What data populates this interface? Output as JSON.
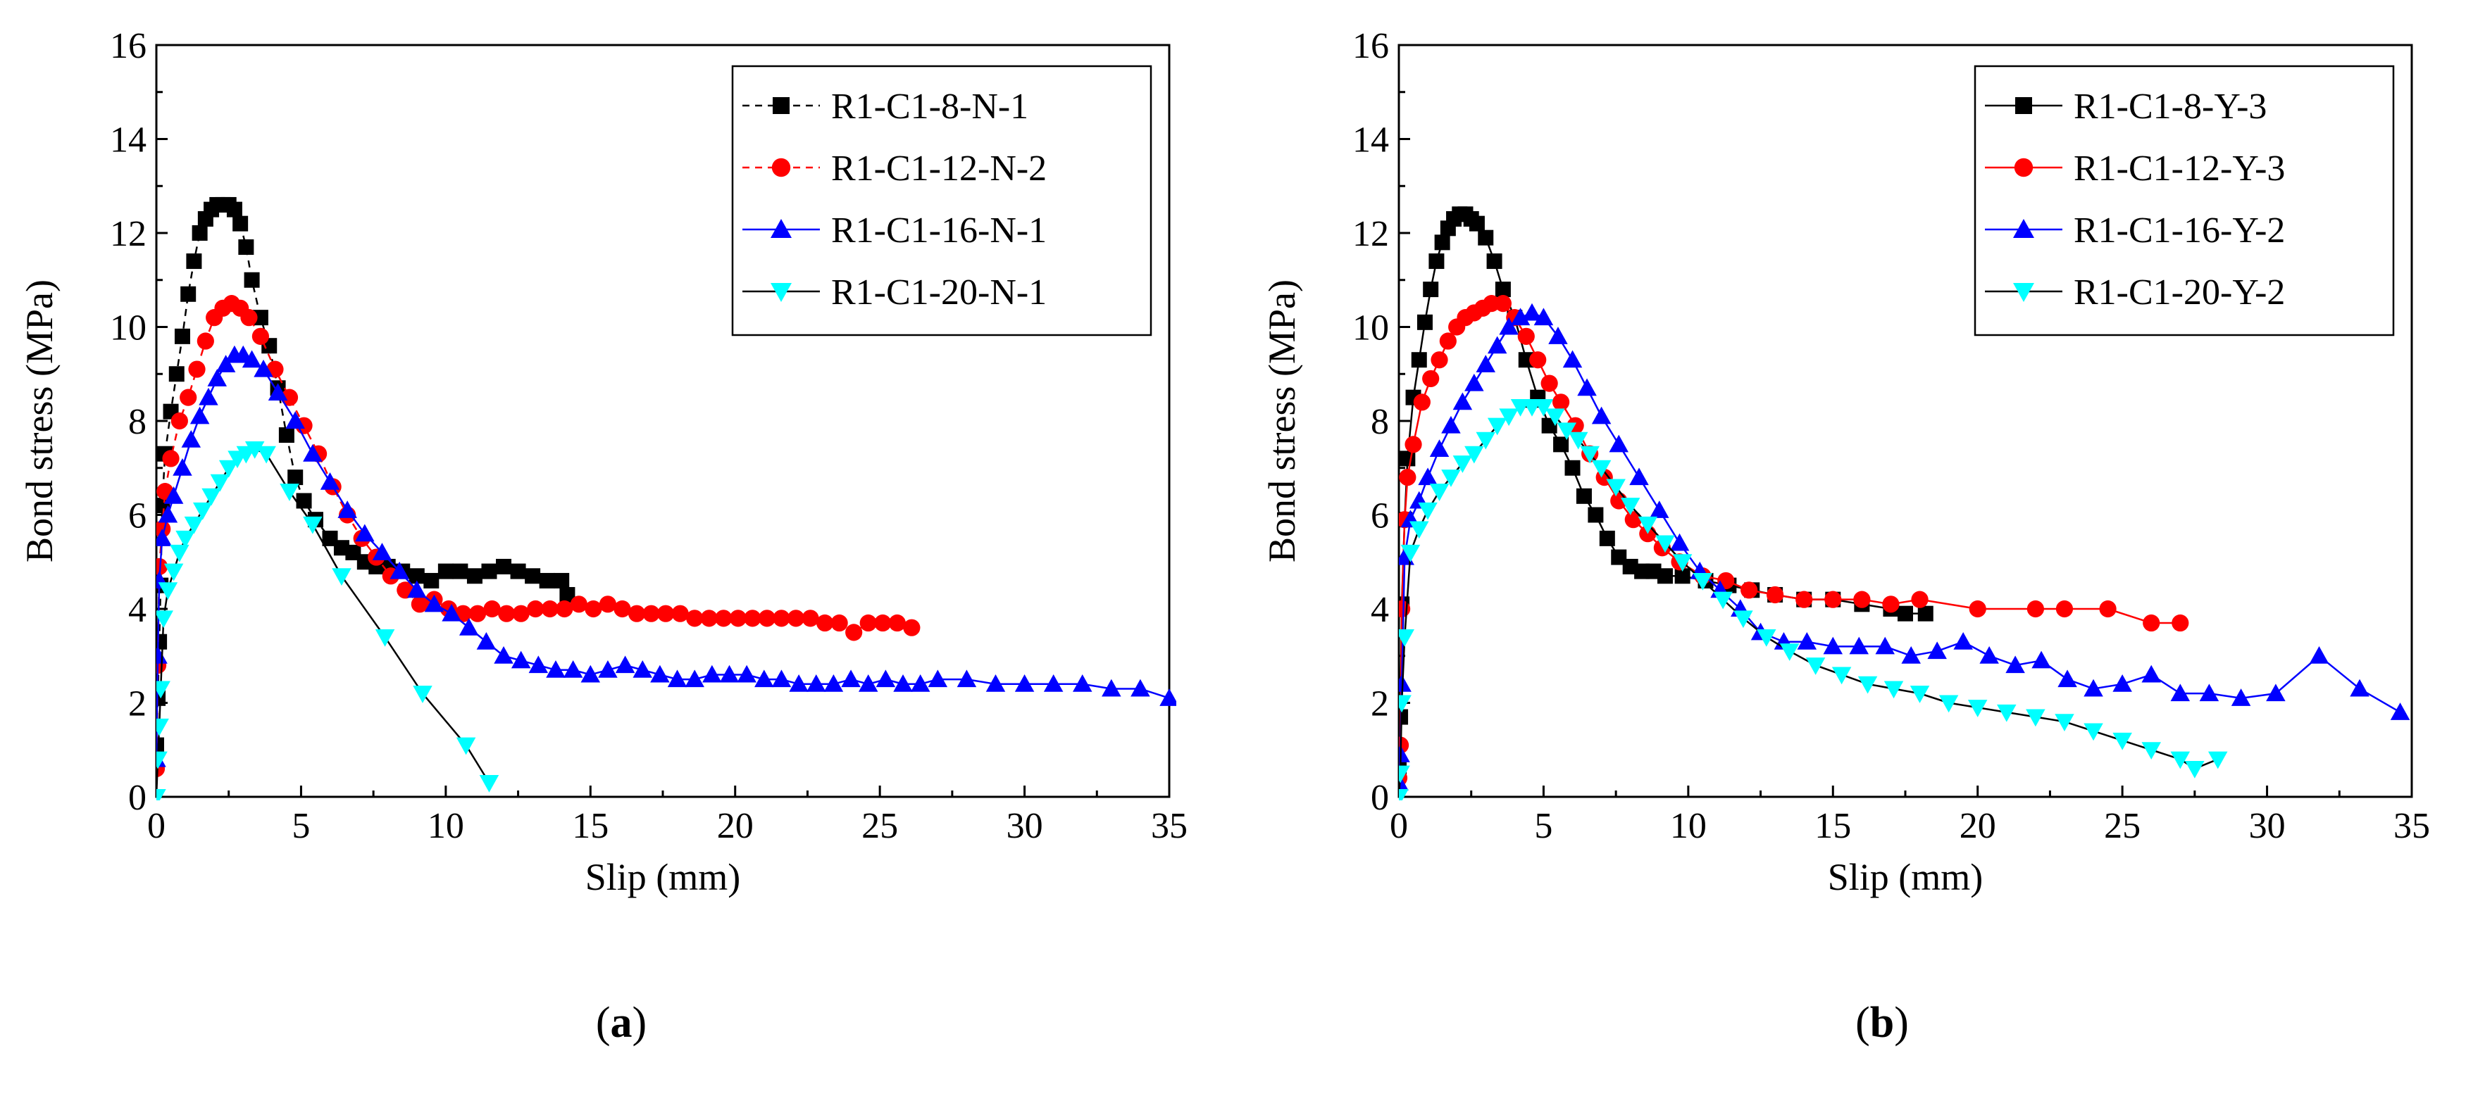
{
  "charts": [
    {
      "id": "a",
      "panel_label": "a",
      "chart_data": {
        "type": "line",
        "title": "",
        "xlabel": "Slip (mm)",
        "ylabel": "Bond stress (MPa)",
        "xlim": [
          0,
          35
        ],
        "ylim": [
          0,
          16
        ],
        "xticks": [
          0,
          5,
          10,
          15,
          20,
          25,
          30,
          35
        ],
        "yticks": [
          0,
          2,
          4,
          6,
          8,
          10,
          12,
          14,
          16
        ],
        "legend_position": "top-right",
        "series": [
          {
            "name": "R1-C1-8-N-1",
            "color": "#000000",
            "marker": "square",
            "dashed": true,
            "x": [
              0,
              0.05,
              0.1,
              0.15,
              0.2,
              0.3,
              0.5,
              0.7,
              0.9,
              1.1,
              1.3,
              1.5,
              1.7,
              1.9,
              2.1,
              2.3,
              2.5,
              2.7,
              2.9,
              3.1,
              3.3,
              3.6,
              3.9,
              4.2,
              4.5,
              4.8,
              5.1,
              5.5,
              6.0,
              6.4,
              6.8,
              7.2,
              7.6,
              8.0,
              8.5,
              9.0,
              9.5,
              10.0,
              10.5,
              11.0,
              11.5,
              12.0,
              12.5,
              13.0,
              13.5,
              14.0,
              14.2
            ],
            "y": [
              1.1,
              2.1,
              3.3,
              4.5,
              6.2,
              7.3,
              8.2,
              9.0,
              9.8,
              10.7,
              11.4,
              12.0,
              12.3,
              12.5,
              12.6,
              12.6,
              12.6,
              12.5,
              12.2,
              11.7,
              11.0,
              10.2,
              9.6,
              8.7,
              7.7,
              6.8,
              6.3,
              5.9,
              5.5,
              5.3,
              5.2,
              5.0,
              4.9,
              4.9,
              4.8,
              4.7,
              4.6,
              4.8,
              4.8,
              4.7,
              4.8,
              4.9,
              4.8,
              4.7,
              4.6,
              4.6,
              4.3
            ]
          },
          {
            "name": "R1-C1-12-N-2",
            "color": "#ff0000",
            "marker": "circle",
            "dashed": true,
            "x": [
              0,
              0.05,
              0.1,
              0.2,
              0.3,
              0.5,
              0.8,
              1.1,
              1.4,
              1.7,
              2.0,
              2.3,
              2.6,
              2.9,
              3.2,
              3.6,
              4.1,
              4.6,
              5.1,
              5.6,
              6.1,
              6.6,
              7.1,
              7.6,
              8.1,
              8.6,
              9.1,
              9.6,
              10.1,
              10.6,
              11.1,
              11.6,
              12.1,
              12.6,
              13.1,
              13.6,
              14.1,
              14.6,
              15.1,
              15.6,
              16.1,
              16.6,
              17.1,
              17.6,
              18.1,
              18.6,
              19.1,
              19.6,
              20.1,
              20.6,
              21.1,
              21.6,
              22.1,
              22.6,
              23.1,
              23.6,
              24.1,
              24.6,
              25.1,
              25.6,
              26.1
            ],
            "y": [
              0.6,
              2.8,
              4.9,
              5.7,
              6.5,
              7.2,
              8.0,
              8.5,
              9.1,
              9.7,
              10.2,
              10.4,
              10.5,
              10.4,
              10.2,
              9.8,
              9.1,
              8.5,
              7.9,
              7.3,
              6.6,
              6.0,
              5.5,
              5.1,
              4.7,
              4.4,
              4.1,
              4.2,
              4.0,
              3.9,
              3.9,
              4.0,
              3.9,
              3.9,
              4.0,
              4.0,
              4.0,
              4.1,
              4.0,
              4.1,
              4.0,
              3.9,
              3.9,
              3.9,
              3.9,
              3.8,
              3.8,
              3.8,
              3.8,
              3.8,
              3.8,
              3.8,
              3.8,
              3.8,
              3.7,
              3.7,
              3.5,
              3.7,
              3.7,
              3.7,
              3.6
            ]
          },
          {
            "name": "R1-C1-16-N-1",
            "color": "#0000ff",
            "marker": "triangle-up",
            "dashed": false,
            "x": [
              0,
              0.05,
              0.1,
              0.2,
              0.4,
              0.6,
              0.9,
              1.2,
              1.5,
              1.8,
              2.1,
              2.4,
              2.7,
              3.0,
              3.3,
              3.7,
              4.2,
              4.8,
              5.4,
              6.0,
              6.6,
              7.2,
              7.8,
              8.4,
              9.0,
              9.6,
              10.2,
              10.8,
              11.4,
              12.0,
              12.6,
              13.2,
              13.8,
              14.4,
              15.0,
              15.6,
              16.2,
              16.8,
              17.4,
              18.0,
              18.6,
              19.2,
              19.8,
              20.4,
              21.0,
              21.6,
              22.2,
              22.8,
              23.4,
              24.0,
              24.6,
              25.2,
              25.8,
              26.4,
              27.0,
              28.0,
              29.0,
              30.0,
              31.0,
              32.0,
              33.0,
              34.0,
              35.0
            ],
            "y": [
              0.8,
              3.0,
              4.6,
              5.5,
              6.0,
              6.4,
              7.0,
              7.6,
              8.1,
              8.5,
              8.9,
              9.2,
              9.4,
              9.4,
              9.3,
              9.1,
              8.6,
              8.0,
              7.3,
              6.7,
              6.1,
              5.6,
              5.2,
              4.8,
              4.4,
              4.1,
              3.9,
              3.6,
              3.3,
              3.0,
              2.9,
              2.8,
              2.7,
              2.7,
              2.6,
              2.7,
              2.8,
              2.7,
              2.6,
              2.5,
              2.5,
              2.6,
              2.6,
              2.6,
              2.5,
              2.5,
              2.4,
              2.4,
              2.4,
              2.5,
              2.4,
              2.5,
              2.4,
              2.4,
              2.5,
              2.5,
              2.4,
              2.4,
              2.4,
              2.4,
              2.3,
              2.3,
              2.1
            ]
          },
          {
            "name": "R1-C1-20-N-1",
            "color": "#00ffff",
            "marker": "triangle-down",
            "dashed": false,
            "x": [
              0,
              0.05,
              0.1,
              0.15,
              0.25,
              0.4,
              0.6,
              0.8,
              1.0,
              1.3,
              1.6,
              1.9,
              2.2,
              2.5,
              2.8,
              3.1,
              3.4,
              3.8,
              4.6,
              5.4,
              6.4,
              7.9,
              9.2,
              10.7,
              11.5
            ],
            "y": [
              0,
              0.8,
              1.5,
              2.3,
              3.8,
              4.4,
              4.8,
              5.2,
              5.5,
              5.8,
              6.1,
              6.4,
              6.7,
              7.0,
              7.2,
              7.3,
              7.4,
              7.3,
              6.5,
              5.8,
              4.7,
              3.4,
              2.2,
              1.1,
              0.3
            ]
          }
        ]
      }
    },
    {
      "id": "b",
      "panel_label": "b",
      "chart_data": {
        "type": "line",
        "title": "",
        "xlabel": "Slip (mm)",
        "ylabel": "Bond stress (MPa)",
        "xlim": [
          0,
          35
        ],
        "ylim": [
          0,
          16
        ],
        "xticks": [
          0,
          5,
          10,
          15,
          20,
          25,
          30,
          35
        ],
        "yticks": [
          0,
          2,
          4,
          6,
          8,
          10,
          12,
          14,
          16
        ],
        "legend_position": "top-right",
        "series": [
          {
            "name": "R1-C1-8-Y-3",
            "color": "#000000",
            "marker": "square",
            "dashed": false,
            "x": [
              0,
              0.05,
              0.1,
              0.2,
              0.3,
              0.5,
              0.7,
              0.9,
              1.1,
              1.3,
              1.5,
              1.7,
              1.9,
              2.1,
              2.3,
              2.5,
              2.7,
              3.0,
              3.3,
              3.6,
              4.0,
              4.4,
              4.8,
              5.2,
              5.6,
              6.0,
              6.4,
              6.8,
              7.2,
              7.6,
              8.0,
              8.4,
              8.8,
              9.2,
              9.8,
              10.6,
              11.4,
              12.2,
              13.0,
              14.0,
              15.0,
              16.0,
              17.0,
              17.5,
              18.2
            ],
            "y": [
              0.6,
              1.7,
              4.1,
              5.9,
              7.2,
              8.5,
              9.3,
              10.1,
              10.8,
              11.4,
              11.8,
              12.1,
              12.3,
              12.4,
              12.4,
              12.3,
              12.2,
              11.9,
              11.4,
              10.8,
              10.2,
              9.3,
              8.5,
              7.9,
              7.5,
              7.0,
              6.4,
              6.0,
              5.5,
              5.1,
              4.9,
              4.8,
              4.8,
              4.7,
              4.7,
              4.6,
              4.5,
              4.4,
              4.3,
              4.2,
              4.2,
              4.1,
              4.0,
              3.9,
              3.9
            ]
          },
          {
            "name": "R1-C1-12-Y-3",
            "color": "#ff0000",
            "marker": "circle",
            "dashed": false,
            "x": [
              0,
              0.05,
              0.1,
              0.2,
              0.3,
              0.5,
              0.8,
              1.1,
              1.4,
              1.7,
              2.0,
              2.3,
              2.6,
              2.9,
              3.2,
              3.6,
              4.0,
              4.4,
              4.8,
              5.2,
              5.6,
              6.1,
              6.6,
              7.1,
              7.6,
              8.1,
              8.6,
              9.1,
              9.7,
              10.5,
              11.3,
              12.1,
              13.0,
              14.0,
              15.0,
              16.0,
              17.0,
              18.0,
              20.0,
              22.0,
              23.0,
              24.5,
              26.0,
              27.0
            ],
            "y": [
              0.4,
              1.1,
              4.0,
              5.9,
              6.8,
              7.5,
              8.4,
              8.9,
              9.3,
              9.7,
              10.0,
              10.2,
              10.3,
              10.4,
              10.5,
              10.5,
              10.2,
              9.8,
              9.3,
              8.8,
              8.4,
              7.9,
              7.3,
              6.8,
              6.3,
              5.9,
              5.6,
              5.3,
              5.0,
              4.7,
              4.6,
              4.4,
              4.3,
              4.2,
              4.2,
              4.2,
              4.1,
              4.2,
              4.0,
              4.0,
              4.0,
              4.0,
              3.7,
              3.7
            ]
          },
          {
            "name": "R1-C1-16-Y-2",
            "color": "#0000ff",
            "marker": "triangle-up",
            "dashed": false,
            "x": [
              0,
              0.05,
              0.1,
              0.2,
              0.4,
              0.7,
              1.0,
              1.4,
              1.8,
              2.2,
              2.6,
              3.0,
              3.4,
              3.8,
              4.2,
              4.6,
              5.0,
              5.5,
              6.0,
              6.5,
              7.0,
              7.6,
              8.3,
              9.0,
              9.7,
              10.4,
              11.1,
              11.8,
              12.5,
              13.3,
              14.1,
              15.0,
              15.9,
              16.8,
              17.7,
              18.6,
              19.5,
              20.4,
              21.3,
              22.2,
              23.1,
              24.0,
              25.0,
              26.0,
              27.0,
              28.0,
              29.1,
              30.3,
              31.8,
              33.2,
              34.6
            ],
            "y": [
              0.3,
              0.9,
              2.4,
              5.1,
              5.9,
              6.3,
              6.8,
              7.4,
              7.9,
              8.4,
              8.8,
              9.2,
              9.6,
              10.0,
              10.2,
              10.3,
              10.2,
              9.8,
              9.3,
              8.7,
              8.1,
              7.5,
              6.8,
              6.1,
              5.4,
              4.8,
              4.4,
              4.0,
              3.5,
              3.3,
              3.3,
              3.2,
              3.2,
              3.2,
              3.0,
              3.1,
              3.3,
              3.0,
              2.8,
              2.9,
              2.5,
              2.3,
              2.4,
              2.6,
              2.2,
              2.2,
              2.1,
              2.2,
              3.0,
              2.3,
              1.8
            ]
          },
          {
            "name": "R1-C1-20-Y-2",
            "color": "#00ffff",
            "marker": "triangle-down",
            "dashed": false,
            "x": [
              0,
              0.05,
              0.1,
              0.2,
              0.4,
              0.7,
              1.0,
              1.4,
              1.8,
              2.2,
              2.6,
              3.0,
              3.4,
              3.8,
              4.2,
              4.6,
              5.0,
              5.4,
              5.8,
              6.2,
              6.6,
              7.0,
              7.5,
              8.0,
              8.6,
              9.2,
              9.8,
              10.5,
              11.2,
              11.9,
              12.7,
              13.5,
              14.4,
              15.3,
              16.2,
              17.1,
              18.0,
              19.0,
              20.0,
              21.0,
              22.0,
              23.0,
              24.0,
              25.0,
              26.0,
              27.0,
              27.5,
              28.3
            ],
            "y": [
              0,
              0.5,
              2.0,
              3.4,
              5.2,
              5.7,
              6.1,
              6.5,
              6.8,
              7.1,
              7.3,
              7.6,
              7.9,
              8.1,
              8.3,
              8.3,
              8.3,
              8.1,
              7.8,
              7.6,
              7.3,
              7.0,
              6.6,
              6.2,
              5.8,
              5.4,
              5.0,
              4.6,
              4.2,
              3.8,
              3.4,
              3.1,
              2.8,
              2.6,
              2.4,
              2.3,
              2.2,
              2.0,
              1.9,
              1.8,
              1.7,
              1.6,
              1.4,
              1.2,
              1.0,
              0.8,
              0.6,
              0.8
            ]
          }
        ]
      }
    }
  ]
}
